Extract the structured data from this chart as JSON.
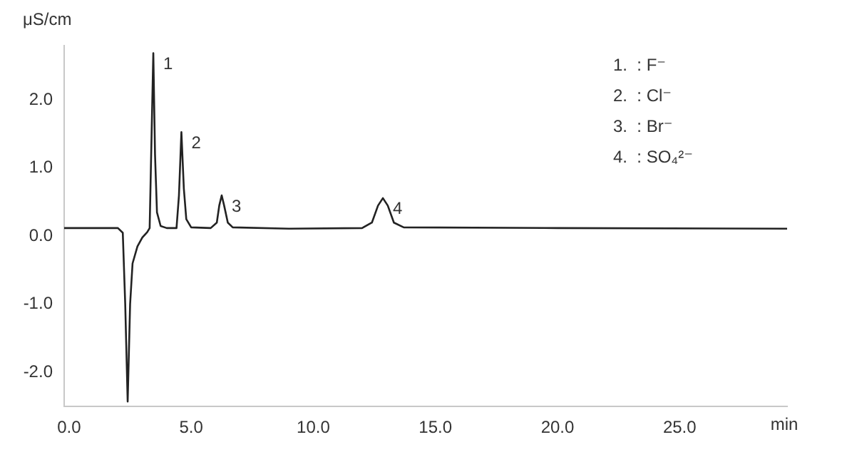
{
  "chart_data": {
    "type": "line",
    "ylabel": "μS/cm",
    "xlabel": "min",
    "x": [
      -0.2,
      2.0,
      2.2,
      2.3,
      2.4,
      2.5,
      2.6,
      2.8,
      3.0,
      3.2,
      3.3,
      3.38,
      3.45,
      3.52,
      3.6,
      3.75,
      4.0,
      4.4,
      4.5,
      4.6,
      4.7,
      4.8,
      5.0,
      5.8,
      6.05,
      6.15,
      6.25,
      6.35,
      6.5,
      6.7,
      9.0,
      12.0,
      12.4,
      12.65,
      12.85,
      13.05,
      13.3,
      13.7,
      20.0,
      29.4
    ],
    "series": [
      {
        "color": "#222222",
        "values": [
          0.12,
          0.12,
          0.05,
          -1.0,
          -2.43,
          -1.0,
          -0.4,
          -0.15,
          -0.02,
          0.06,
          0.12,
          1.5,
          2.69,
          1.2,
          0.35,
          0.15,
          0.12,
          0.12,
          0.6,
          1.53,
          0.7,
          0.25,
          0.13,
          0.12,
          0.2,
          0.45,
          0.6,
          0.45,
          0.2,
          0.13,
          0.11,
          0.12,
          0.2,
          0.45,
          0.56,
          0.45,
          0.2,
          0.13,
          0.12,
          0.11
        ]
      }
    ],
    "xticks": [
      {
        "value": 0,
        "label": "0.0"
      },
      {
        "value": 5,
        "label": "5.0"
      },
      {
        "value": 10,
        "label": "10.0"
      },
      {
        "value": 15,
        "label": "15.0"
      },
      {
        "value": 20,
        "label": "20.0"
      },
      {
        "value": 25,
        "label": "25.0"
      }
    ],
    "yticks": [
      {
        "value": -2,
        "label": "-2.0"
      },
      {
        "value": -1,
        "label": "-1.0"
      },
      {
        "value": 0,
        "label": "0.0"
      },
      {
        "value": 1,
        "label": "1.0"
      },
      {
        "value": 2,
        "label": "2.0"
      }
    ],
    "xlim": [
      -0.2,
      29.4
    ],
    "ylim": [
      -2.5,
      2.8
    ],
    "grid": false,
    "legend": false,
    "marker": "none",
    "line_style": "solid",
    "annotations": [
      {
        "text": "1",
        "x": 3.45,
        "y": 2.69
      },
      {
        "text": "2",
        "x": 4.6,
        "y": 1.53
      },
      {
        "text": "3",
        "x": 6.25,
        "y": 0.6
      },
      {
        "text": "4",
        "x": 12.85,
        "y": 0.56
      },
      "1.  : F⁻",
      "2.  : Cl⁻",
      "3.  : Br⁻",
      "4.  : SO₄²⁻"
    ]
  }
}
